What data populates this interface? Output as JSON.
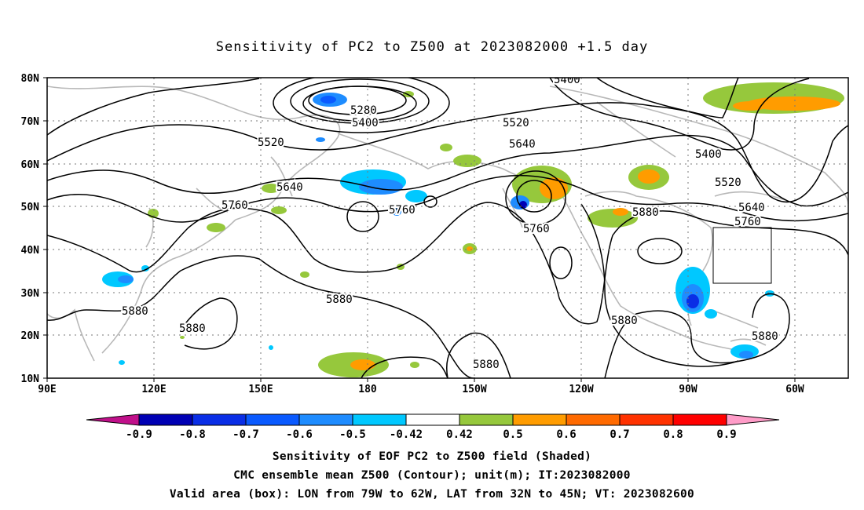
{
  "title": "Sensitivity of PC2 to Z500 at 2023082000 +1.5 day",
  "map": {
    "lat_labels": [
      "80N",
      "70N",
      "60N",
      "50N",
      "40N",
      "30N",
      "20N",
      "10N"
    ],
    "lon_labels": [
      "90E",
      "120E",
      "150E",
      "180",
      "150W",
      "120W",
      "90W",
      "60W"
    ],
    "contour_labels": [
      "5400",
      "5280",
      "5400",
      "5520",
      "5520",
      "5640",
      "5400",
      "5520",
      "5640",
      "5760",
      "5760",
      "5760",
      "5880",
      "5640",
      "5760",
      "5880",
      "5880",
      "5880",
      "5880",
      "5880",
      "5880"
    ],
    "valid_box": {
      "lon_from": "79W",
      "lon_to": "62W",
      "lat_from": "32N",
      "lat_to": "45N"
    }
  },
  "colorbar": {
    "labels": [
      "-0.9",
      "-0.8",
      "-0.7",
      "-0.6",
      "-0.5",
      "-0.42",
      "0.42",
      "0.5",
      "0.6",
      "0.7",
      "0.8",
      "0.9"
    ],
    "colors": [
      "#c0108a",
      "#0000b4",
      "#0a2ee6",
      "#0a5aff",
      "#1e8cff",
      "#00c8ff",
      "#ffffff",
      "#96c83c",
      "#ff9c00",
      "#ff6a00",
      "#ff3200",
      "#ff0000",
      "#ff9cc8"
    ]
  },
  "captions": [
    "Sensitivity of EOF PC2 to Z500 field (Shaded)",
    "CMC ensemble mean Z500 (Contour); unit(m); IT:2023082000",
    "Valid area (box): LON from 79W to 62W, LAT from 32N to 45N; VT: 2023082600"
  ]
}
